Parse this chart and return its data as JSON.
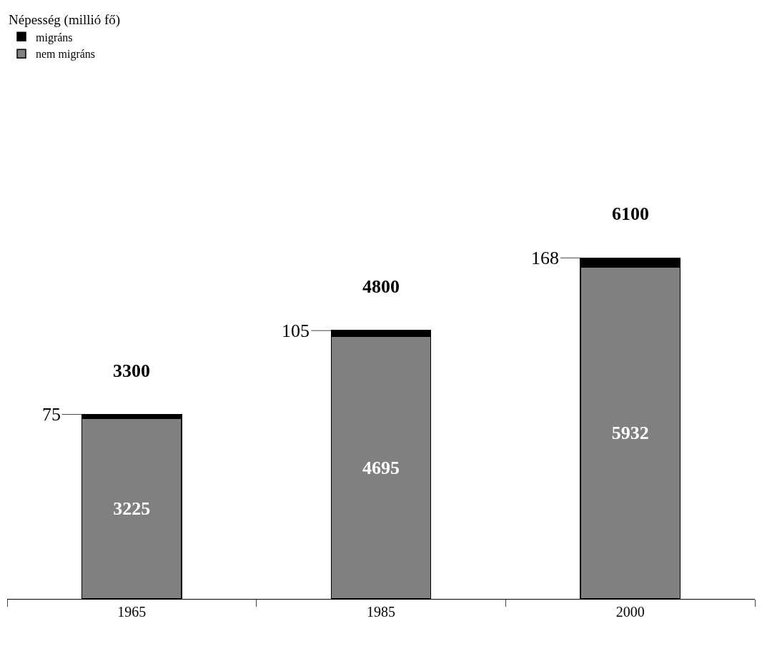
{
  "chart_data": {
    "type": "bar",
    "stacked": true,
    "legend_title": "Népesség (millió fő)",
    "legend": "top left",
    "categories": [
      "1965",
      "1985",
      "2000"
    ],
    "series": [
      {
        "name": "nem migráns",
        "color": "#808080",
        "values": [
          3225,
          4695,
          5932
        ]
      },
      {
        "name": "migráns",
        "color": "#000000",
        "values": [
          75,
          105,
          168
        ]
      }
    ],
    "data_labels": true,
    "totals": [
      "3300",
      "4800",
      "6100"
    ],
    "grid": false
  }
}
